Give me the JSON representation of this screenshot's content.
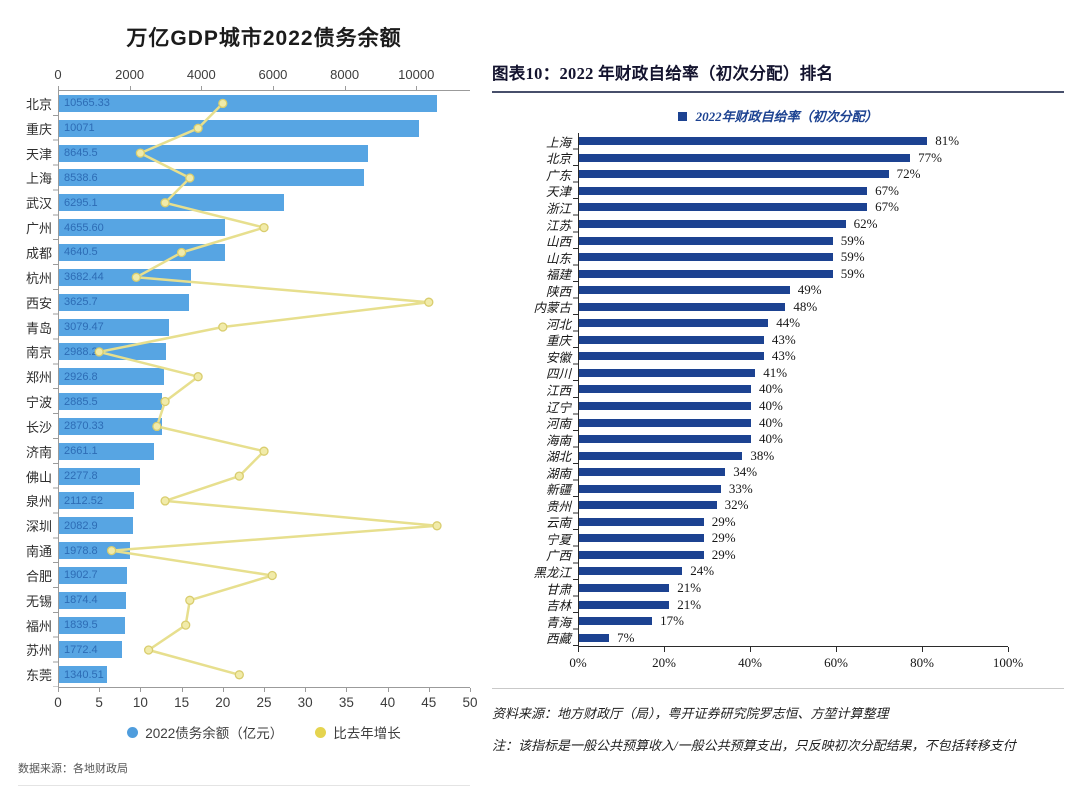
{
  "chart_data": [
    {
      "type": "bar",
      "orientation": "horizontal",
      "title": "万亿GDP城市2022债务余额",
      "source": "数据来源：各地财政局",
      "legend_position": "bottom",
      "grid": false,
      "categories": [
        "北京",
        "重庆",
        "天津",
        "上海",
        "武汉",
        "广州",
        "成都",
        "杭州",
        "西安",
        "青岛",
        "南京",
        "郑州",
        "宁波",
        "长沙",
        "济南",
        "佛山",
        "泉州",
        "深圳",
        "南通",
        "合肥",
        "无锡",
        "福州",
        "苏州",
        "东莞"
      ],
      "series": [
        {
          "name": "2022债务余额（亿元）",
          "type": "bar",
          "color": "#57a5e3",
          "label_color": "#2d6cb5",
          "legend_dot_color": "#4f9ddd",
          "axis": "top",
          "axis_ticks": [
            "0",
            "2000",
            "4000",
            "6000",
            "8000",
            "10000"
          ],
          "axis_tick_values": [
            0,
            2000,
            4000,
            6000,
            8000,
            10000
          ],
          "axis_max": 11500,
          "values": [
            10565.33,
            10071,
            8645.5,
            8538.6,
            6295.1,
            4655.6,
            4640.5,
            3682.44,
            3625.7,
            3079.47,
            2988.2,
            2926.8,
            2885.5,
            2870.33,
            2661.1,
            2277.8,
            2112.52,
            2082.9,
            1978.8,
            1902.7,
            1874.4,
            1839.5,
            1772.4,
            1340.51
          ],
          "labels": [
            "10565.33",
            "10071",
            "8645.5",
            "8538.6",
            "6295.1",
            "4655.60",
            "4640.5",
            "3682.44",
            "3625.7",
            "3079.47",
            "2988.2",
            "2926.8",
            "2885.5",
            "2870.33",
            "2661.1",
            "2277.8",
            "2112.52",
            "2082.9",
            "1978.8",
            "1902.7",
            "1874.4",
            "1839.5",
            "1772.4",
            "1340.51"
          ]
        },
        {
          "name": "比去年增长",
          "type": "line",
          "color": "#e7df8e",
          "marker_fill": "#f1eba9",
          "marker_stroke": "#d9cd6e",
          "legend_dot_color": "#e5d44f",
          "axis": "bottom",
          "axis_ticks": [
            "0",
            "5",
            "10",
            "15",
            "20",
            "25",
            "30",
            "35",
            "40",
            "45",
            "50"
          ],
          "axis_tick_values": [
            0,
            5,
            10,
            15,
            20,
            25,
            30,
            35,
            40,
            45,
            50
          ],
          "axis_max": 50,
          "values": [
            20,
            17,
            10,
            16,
            13,
            25,
            15,
            9.5,
            45,
            20,
            5,
            17,
            13,
            12,
            25,
            22,
            13,
            46,
            6.5,
            26,
            16,
            15.5,
            11,
            22
          ]
        }
      ]
    },
    {
      "type": "bar",
      "orientation": "horizontal",
      "title": "图表10：2022 年财政自给率（初次分配）排名",
      "legend": "2022年财政自给率（初次分配）",
      "bar_color": "#1c4291",
      "grid": false,
      "categories": [
        "上海",
        "北京",
        "广东",
        "天津",
        "浙江",
        "江苏",
        "山西",
        "山东",
        "福建",
        "陕西",
        "内蒙古",
        "河北",
        "重庆",
        "安徽",
        "四川",
        "江西",
        "辽宁",
        "河南",
        "海南",
        "湖北",
        "湖南",
        "新疆",
        "贵州",
        "云南",
        "宁夏",
        "广西",
        "黑龙江",
        "甘肃",
        "吉林",
        "青海",
        "西藏"
      ],
      "values": [
        81,
        77,
        72,
        67,
        67,
        62,
        59,
        59,
        59,
        49,
        48,
        44,
        43,
        43,
        41,
        40,
        40,
        40,
        40,
        38,
        34,
        33,
        32,
        29,
        29,
        29,
        24,
        21,
        21,
        17,
        7
      ],
      "labels": [
        "81%",
        "77%",
        "72%",
        "67%",
        "67%",
        "62%",
        "59%",
        "59%",
        "59%",
        "49%",
        "48%",
        "44%",
        "43%",
        "43%",
        "41%",
        "40%",
        "40%",
        "40%",
        "40%",
        "38%",
        "34%",
        "33%",
        "32%",
        "29%",
        "29%",
        "29%",
        "24%",
        "21%",
        "21%",
        "17%",
        "7%"
      ],
      "xlim": [
        0,
        100
      ],
      "axis_ticks": [
        "0%",
        "20%",
        "40%",
        "60%",
        "80%",
        "100%"
      ],
      "axis_tick_values": [
        0,
        20,
        40,
        60,
        80,
        100
      ],
      "source": "资料来源：地方财政厅（局），粤开证券研究院罗志恒、方堃计算整理",
      "note": "注：该指标是一般公共预算收入/一般公共预算支出，只反映初次分配结果，不包括转移支付"
    }
  ]
}
